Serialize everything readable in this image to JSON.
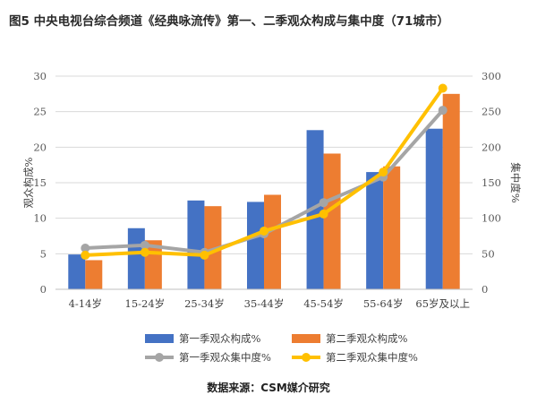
{
  "title": "图5 中央电视台综合频道《经典咏流传》第一、二季观众构成与集中度（71城市）",
  "source": "数据来源：CSM媒介研究",
  "chart_data": {
    "type": "bar",
    "categories": [
      "4-14岁",
      "15-24岁",
      "25-34岁",
      "35-44岁",
      "45-54岁",
      "55-64岁",
      "65岁及以上"
    ],
    "ylabel": "观众构成%",
    "y2label": "集中度%",
    "ylim": [
      0,
      30
    ],
    "y2lim": [
      0,
      300
    ],
    "yticks": [
      "0",
      "5",
      "10",
      "15",
      "20",
      "25",
      "30"
    ],
    "y2ticks": [
      "0",
      "50",
      "100",
      "150",
      "200",
      "250",
      "300"
    ],
    "grid": true,
    "legend_position": "bottom",
    "series": [
      {
        "name": "第一季观众构成%",
        "type": "bar",
        "axis": "left",
        "color": "#4472c4",
        "values": [
          4.9,
          8.6,
          12.5,
          12.3,
          22.4,
          16.5,
          22.6
        ]
      },
      {
        "name": "第二季观众构成%",
        "type": "bar",
        "axis": "left",
        "color": "#ed7d31",
        "values": [
          4.1,
          6.9,
          11.7,
          13.3,
          19.1,
          17.3,
          27.5
        ]
      },
      {
        "name": "第一季观众集中度%",
        "type": "line",
        "axis": "right",
        "color": "#a5a5a5",
        "values": [
          58,
          62,
          52,
          78,
          122,
          158,
          252
        ]
      },
      {
        "name": "第二季观众集中度%",
        "type": "line",
        "axis": "right",
        "color": "#ffc000",
        "values": [
          48,
          52,
          48,
          82,
          106,
          165,
          283
        ]
      }
    ]
  }
}
